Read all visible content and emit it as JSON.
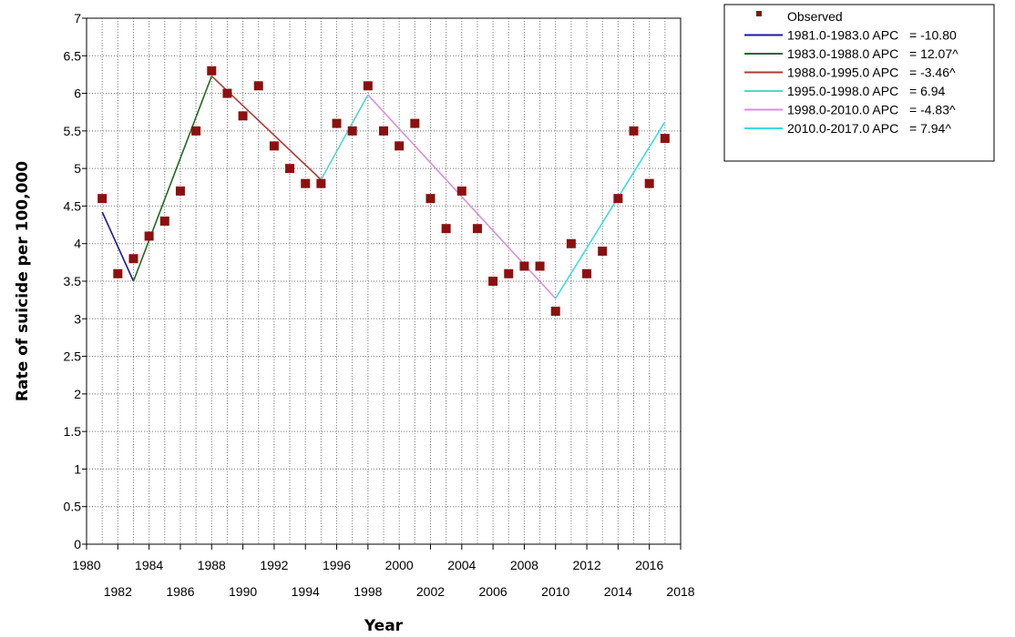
{
  "chart_data": {
    "type": "line",
    "xlabel": "Year",
    "ylabel": "Rate of suicide per 100,000",
    "xlim": [
      1980,
      2018
    ],
    "ylim": [
      0,
      7
    ],
    "x_ticks_upper": [
      1980,
      1984,
      1988,
      1992,
      1996,
      2000,
      2004,
      2008,
      2012,
      2016
    ],
    "x_ticks_lower": [
      1982,
      1986,
      1990,
      1994,
      1998,
      2002,
      2006,
      2010,
      2014,
      2018
    ],
    "y_ticks": [
      "0",
      "0.5",
      "1",
      "1.5",
      "2",
      "2.5",
      "3",
      "3.5",
      "4",
      "4.5",
      "5",
      "5.5",
      "6",
      "6.5",
      "7"
    ],
    "grid": true,
    "legend_position": "top-right, outside plot",
    "observed": {
      "name": "Observed",
      "color": "#8b1010",
      "points": [
        {
          "x": 1981,
          "y": 4.6
        },
        {
          "x": 1982,
          "y": 3.6
        },
        {
          "x": 1983,
          "y": 3.8
        },
        {
          "x": 1984,
          "y": 4.1
        },
        {
          "x": 1985,
          "y": 4.3
        },
        {
          "x": 1986,
          "y": 4.7
        },
        {
          "x": 1987,
          "y": 5.5
        },
        {
          "x": 1988,
          "y": 6.3
        },
        {
          "x": 1989,
          "y": 6.0
        },
        {
          "x": 1990,
          "y": 5.7
        },
        {
          "x": 1991,
          "y": 6.1
        },
        {
          "x": 1992,
          "y": 5.3
        },
        {
          "x": 1993,
          "y": 5.0
        },
        {
          "x": 1994,
          "y": 4.8
        },
        {
          "x": 1995,
          "y": 4.8
        },
        {
          "x": 1996,
          "y": 5.6
        },
        {
          "x": 1997,
          "y": 5.5
        },
        {
          "x": 1998,
          "y": 6.1
        },
        {
          "x": 1999,
          "y": 5.5
        },
        {
          "x": 2000,
          "y": 5.3
        },
        {
          "x": 2001,
          "y": 5.6
        },
        {
          "x": 2002,
          "y": 4.6
        },
        {
          "x": 2003,
          "y": 4.2
        },
        {
          "x": 2004,
          "y": 4.7
        },
        {
          "x": 2005,
          "y": 4.2
        },
        {
          "x": 2006,
          "y": 3.5
        },
        {
          "x": 2007,
          "y": 3.6
        },
        {
          "x": 2008,
          "y": 3.7
        },
        {
          "x": 2009,
          "y": 3.7
        },
        {
          "x": 2010,
          "y": 3.1
        },
        {
          "x": 2011,
          "y": 4.0
        },
        {
          "x": 2012,
          "y": 3.6
        },
        {
          "x": 2013,
          "y": 3.9
        },
        {
          "x": 2014,
          "y": 4.6
        },
        {
          "x": 2015,
          "y": 5.5
        },
        {
          "x": 2016,
          "y": 4.8
        },
        {
          "x": 2017,
          "y": 5.4
        }
      ]
    },
    "series": [
      {
        "name": "1981.0-1983.0 APC",
        "apc": "-10.80",
        "color": "#1a1a99",
        "points": [
          [
            1981,
            4.42
          ],
          [
            1983,
            3.5
          ]
        ]
      },
      {
        "name": "1983.0-1988.0 APC",
        "apc": "12.07^",
        "color": "#1f6b1f",
        "points": [
          [
            1983,
            3.5
          ],
          [
            1988,
            6.23
          ]
        ]
      },
      {
        "name": "1988.0-1995.0 APC",
        "apc": "-3.46^",
        "color": "#b03a3a",
        "points": [
          [
            1988,
            6.23
          ],
          [
            1995,
            4.85
          ]
        ]
      },
      {
        "name": "1995.0-1998.0 APC",
        "apc": "6.94",
        "color": "#52d6c6",
        "points": [
          [
            1995,
            4.85
          ],
          [
            1998,
            5.98
          ]
        ]
      },
      {
        "name": "1998.0-2010.0 APC",
        "apc": "-4.83^",
        "color": "#d98fd9",
        "points": [
          [
            1998,
            5.98
          ],
          [
            2010,
            3.27
          ]
        ]
      },
      {
        "name": "2010.0-2017.0 APC",
        "apc": "7.94^",
        "color": "#39dde0",
        "points": [
          [
            2010,
            3.27
          ],
          [
            2017,
            5.62
          ]
        ]
      }
    ]
  }
}
